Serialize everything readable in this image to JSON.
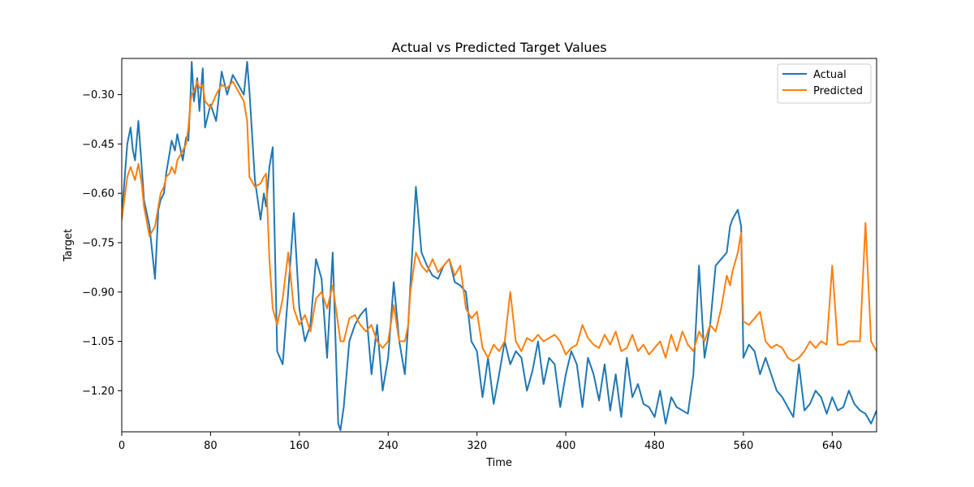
{
  "chart_data": {
    "type": "line",
    "title": "Actual vs Predicted Target Values",
    "xlabel": "Time",
    "ylabel": "Target",
    "xlim": [
      0,
      680
    ],
    "ylim": [
      -1.325,
      -0.19
    ],
    "x_ticks": [
      0,
      80,
      160,
      240,
      320,
      400,
      480,
      560,
      640
    ],
    "y_ticks": [
      -1.2,
      -1.05,
      -0.9,
      -0.75,
      -0.6,
      -0.45,
      -0.3
    ],
    "x_tick_labels": [
      "0",
      "80",
      "160",
      "240",
      "320",
      "400",
      "480",
      "560",
      "640"
    ],
    "y_tick_labels": [
      "−1.20",
      "−1.05",
      "−0.90",
      "−0.75",
      "−0.60",
      "−0.45",
      "−0.30"
    ],
    "grid": false,
    "legend_position": "top-right",
    "series": [
      {
        "name": "Actual",
        "color": "#1f77b4",
        "x": [
          0,
          5,
          8,
          10,
          12,
          15,
          18,
          20,
          25,
          30,
          33,
          35,
          38,
          40,
          43,
          45,
          48,
          50,
          55,
          58,
          60,
          62,
          63,
          65,
          68,
          70,
          73,
          75,
          80,
          85,
          90,
          95,
          100,
          105,
          110,
          113,
          115,
          120,
          125,
          128,
          130,
          133,
          136,
          140,
          145,
          150,
          155,
          160,
          165,
          170,
          175,
          180,
          185,
          190,
          195,
          197,
          200,
          205,
          210,
          215,
          220,
          225,
          230,
          235,
          240,
          245,
          250,
          255,
          258,
          260,
          265,
          270,
          275,
          280,
          285,
          290,
          295,
          300,
          305,
          310,
          315,
          320,
          325,
          330,
          335,
          340,
          345,
          350,
          355,
          360,
          365,
          370,
          375,
          380,
          385,
          390,
          395,
          400,
          405,
          410,
          415,
          420,
          425,
          430,
          435,
          440,
          445,
          450,
          455,
          460,
          465,
          470,
          475,
          480,
          485,
          490,
          495,
          500,
          505,
          510,
          515,
          520,
          525,
          530,
          535,
          540,
          545,
          548,
          550,
          555,
          558,
          560,
          565,
          570,
          575,
          580,
          585,
          590,
          595,
          600,
          605,
          610,
          615,
          620,
          625,
          630,
          635,
          640,
          645,
          650,
          655,
          660,
          665,
          670,
          675,
          680
        ],
        "values": [
          -0.67,
          -0.45,
          -0.4,
          -0.47,
          -0.5,
          -0.38,
          -0.52,
          -0.62,
          -0.7,
          -0.86,
          -0.65,
          -0.62,
          -0.6,
          -0.54,
          -0.48,
          -0.44,
          -0.47,
          -0.42,
          -0.5,
          -0.43,
          -0.44,
          -0.3,
          -0.2,
          -0.32,
          -0.25,
          -0.35,
          -0.22,
          -0.4,
          -0.33,
          -0.38,
          -0.23,
          -0.3,
          -0.24,
          -0.27,
          -0.3,
          -0.2,
          -0.29,
          -0.56,
          -0.68,
          -0.6,
          -0.64,
          -0.52,
          -0.46,
          -1.08,
          -1.12,
          -0.9,
          -0.66,
          -0.95,
          -1.05,
          -1.0,
          -0.8,
          -0.86,
          -1.1,
          -0.78,
          -1.3,
          -1.32,
          -1.25,
          -1.05,
          -1.0,
          -0.97,
          -0.95,
          -1.15,
          -1.0,
          -1.2,
          -1.1,
          -0.87,
          -1.05,
          -1.15,
          -1.0,
          -0.88,
          -0.58,
          -0.78,
          -0.82,
          -0.85,
          -0.86,
          -0.82,
          -0.8,
          -0.87,
          -0.88,
          -0.9,
          -1.05,
          -1.08,
          -1.22,
          -1.1,
          -1.24,
          -1.15,
          -1.05,
          -1.12,
          -1.08,
          -1.1,
          -1.2,
          -1.14,
          -1.05,
          -1.18,
          -1.1,
          -1.12,
          -1.25,
          -1.15,
          -1.08,
          -1.12,
          -1.25,
          -1.1,
          -1.15,
          -1.23,
          -1.12,
          -1.26,
          -1.15,
          -1.28,
          -1.1,
          -1.22,
          -1.18,
          -1.24,
          -1.25,
          -1.28,
          -1.2,
          -1.3,
          -1.22,
          -1.25,
          -1.26,
          -1.27,
          -1.15,
          -0.82,
          -1.1,
          -1.0,
          -0.82,
          -0.8,
          -0.78,
          -0.7,
          -0.68,
          -0.65,
          -0.7,
          -1.1,
          -1.06,
          -1.08,
          -1.15,
          -1.1,
          -1.15,
          -1.2,
          -1.22,
          -1.25,
          -1.28,
          -1.12,
          -1.26,
          -1.24,
          -1.2,
          -1.22,
          -1.27,
          -1.22,
          -1.26,
          -1.25,
          -1.2,
          -1.24,
          -1.26,
          -1.27,
          -1.3,
          -1.26
        ]
      },
      {
        "name": "Predicted",
        "color": "#ff7f0e",
        "x": [
          0,
          5,
          8,
          10,
          12,
          15,
          18,
          20,
          25,
          30,
          33,
          35,
          38,
          40,
          43,
          45,
          48,
          50,
          55,
          58,
          60,
          62,
          63,
          65,
          68,
          70,
          73,
          75,
          80,
          85,
          90,
          95,
          100,
          105,
          110,
          113,
          115,
          120,
          125,
          128,
          130,
          133,
          136,
          140,
          145,
          150,
          155,
          160,
          165,
          170,
          175,
          180,
          185,
          190,
          195,
          197,
          200,
          205,
          210,
          215,
          220,
          225,
          230,
          235,
          240,
          245,
          250,
          255,
          258,
          260,
          265,
          270,
          275,
          280,
          285,
          290,
          295,
          300,
          305,
          310,
          315,
          320,
          325,
          330,
          335,
          340,
          345,
          350,
          355,
          360,
          365,
          370,
          375,
          380,
          385,
          390,
          395,
          400,
          405,
          410,
          415,
          420,
          425,
          430,
          435,
          440,
          445,
          450,
          455,
          460,
          465,
          470,
          475,
          480,
          485,
          490,
          495,
          500,
          505,
          510,
          515,
          520,
          525,
          530,
          535,
          540,
          545,
          548,
          550,
          555,
          558,
          560,
          565,
          570,
          575,
          580,
          585,
          590,
          595,
          600,
          605,
          610,
          615,
          620,
          625,
          630,
          635,
          640,
          645,
          650,
          655,
          660,
          665,
          670,
          675,
          680
        ],
        "values": [
          -0.68,
          -0.55,
          -0.52,
          -0.54,
          -0.56,
          -0.51,
          -0.57,
          -0.64,
          -0.73,
          -0.7,
          -0.64,
          -0.6,
          -0.58,
          -0.55,
          -0.54,
          -0.52,
          -0.54,
          -0.5,
          -0.47,
          -0.45,
          -0.4,
          -0.32,
          -0.3,
          -0.29,
          -0.26,
          -0.28,
          -0.27,
          -0.32,
          -0.34,
          -0.3,
          -0.27,
          -0.28,
          -0.26,
          -0.29,
          -0.32,
          -0.38,
          -0.55,
          -0.58,
          -0.57,
          -0.55,
          -0.54,
          -0.8,
          -0.95,
          -1.0,
          -0.92,
          -0.78,
          -0.95,
          -1.0,
          -0.97,
          -1.02,
          -0.92,
          -0.9,
          -0.95,
          -0.88,
          -1.0,
          -1.05,
          -1.05,
          -0.98,
          -0.97,
          -1.0,
          -1.02,
          -1.0,
          -1.05,
          -1.07,
          -1.05,
          -0.94,
          -1.05,
          -1.05,
          -1.0,
          -0.9,
          -0.78,
          -0.82,
          -0.84,
          -0.8,
          -0.84,
          -0.82,
          -0.8,
          -0.85,
          -0.82,
          -0.95,
          -0.98,
          -0.96,
          -1.07,
          -1.1,
          -1.06,
          -1.08,
          -1.05,
          -0.9,
          -1.05,
          -1.08,
          -1.04,
          -1.05,
          -1.03,
          -1.05,
          -1.04,
          -1.03,
          -1.05,
          -1.09,
          -1.07,
          -1.06,
          -1.0,
          -1.04,
          -1.06,
          -1.07,
          -1.03,
          -1.06,
          -1.02,
          -1.08,
          -1.07,
          -1.03,
          -1.08,
          -1.06,
          -1.09,
          -1.07,
          -1.05,
          -1.1,
          -1.03,
          -1.08,
          -1.02,
          -1.06,
          -1.08,
          -1.02,
          -1.05,
          -1.0,
          -1.02,
          -0.95,
          -0.85,
          -0.88,
          -0.84,
          -0.78,
          -0.72,
          -0.99,
          -1.0,
          -0.98,
          -0.96,
          -1.05,
          -1.07,
          -1.06,
          -1.07,
          -1.1,
          -1.11,
          -1.1,
          -1.08,
          -1.05,
          -1.07,
          -1.05,
          -1.06,
          -0.82,
          -1.06,
          -1.06,
          -1.05,
          -1.05,
          -1.05,
          -0.69,
          -1.05,
          -1.08
        ]
      }
    ]
  }
}
